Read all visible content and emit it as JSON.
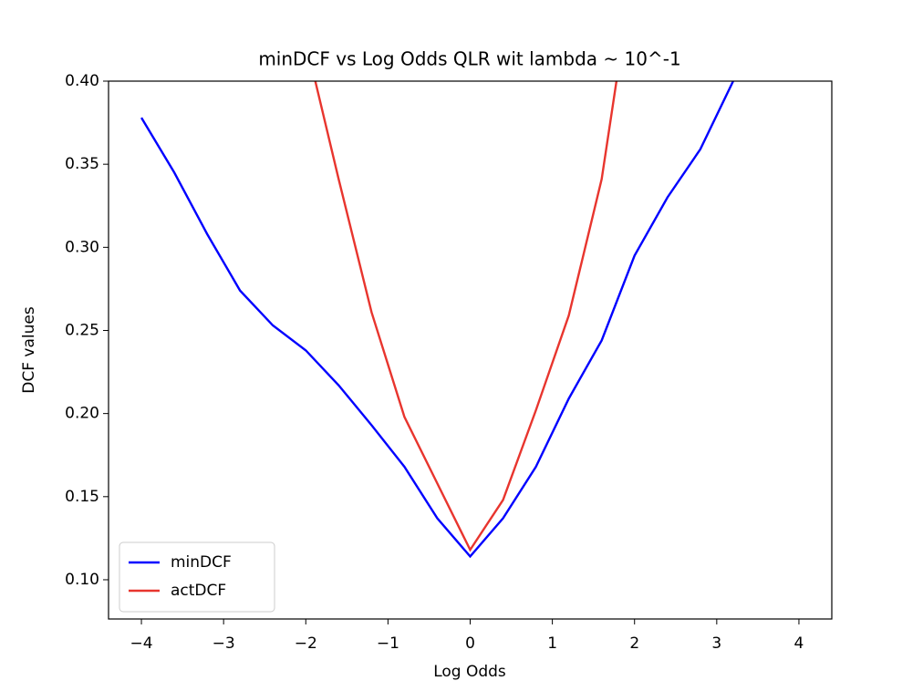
{
  "chart_data": {
    "type": "line",
    "title": "minDCF vs Log Odds QLR wit lambda ~ 10^-1",
    "xlabel": "Log Odds",
    "ylabel": "DCF values",
    "x": [
      -4,
      -3.6,
      -3.2,
      -2.8,
      -2.4,
      -2.0,
      -1.6,
      -1.2,
      -0.8,
      -0.4,
      0,
      0.4,
      0.8,
      1.2,
      1.6,
      2.0,
      2.4,
      2.8,
      3.2,
      3.6,
      4.0
    ],
    "series": [
      {
        "name": "minDCF",
        "color": "#0000ff",
        "values": [
          0.378,
          0.345,
          0.308,
          0.274,
          0.253,
          0.238,
          0.217,
          0.193,
          0.168,
          0.137,
          0.114,
          0.137,
          0.168,
          0.209,
          0.244,
          0.295,
          0.33,
          0.359,
          0.4,
          null,
          null
        ]
      },
      {
        "name": "actDCF",
        "color": "#e8352e",
        "values": [
          null,
          null,
          null,
          null,
          null,
          0.424,
          0.341,
          0.261,
          0.198,
          0.158,
          0.118,
          0.148,
          0.202,
          0.259,
          0.341,
          0.472,
          null,
          null,
          null,
          null,
          null
        ]
      }
    ],
    "xlim": [
      -4.4,
      4.4
    ],
    "ylim": [
      0.0764,
      0.4
    ],
    "xticks": [
      {
        "value": -4,
        "label": "−4"
      },
      {
        "value": -3,
        "label": "−3"
      },
      {
        "value": -2,
        "label": "−2"
      },
      {
        "value": -1,
        "label": "−1"
      },
      0,
      1,
      2,
      3,
      4
    ],
    "yticks": [
      {
        "value": 0.1,
        "label": "0.10"
      },
      0.15,
      {
        "value": 0.2,
        "label": "0.20"
      },
      0.25,
      {
        "value": 0.3,
        "label": "0.30"
      },
      0.35,
      {
        "value": 0.4,
        "label": "0.40"
      }
    ],
    "legend": "lower left",
    "grid": false
  }
}
